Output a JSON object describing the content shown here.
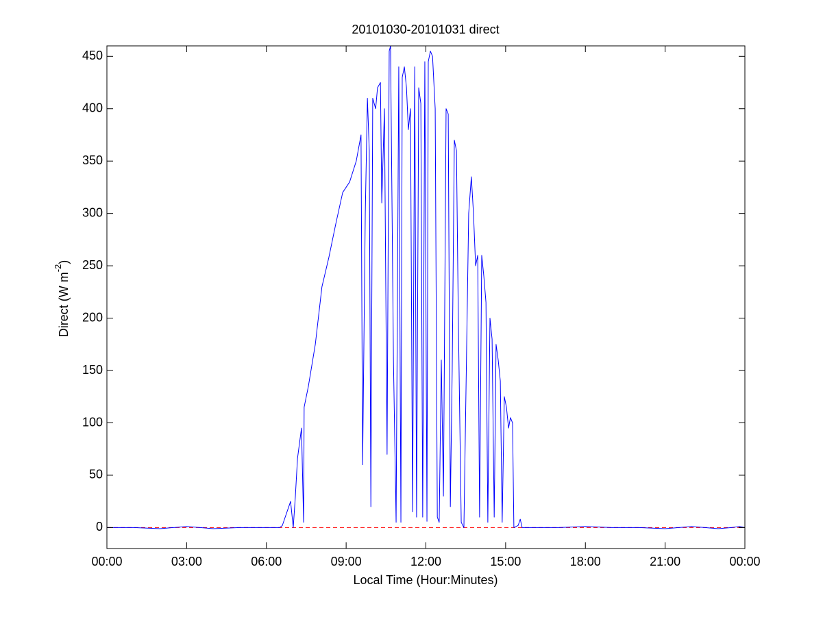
{
  "chart_data": {
    "type": "line",
    "title": "20101030-20101031 direct",
    "x_label": "Local Time (Hour:Minutes)",
    "y_label": {
      "text": "Direct (W m",
      "sup": "-2",
      "end": ")"
    },
    "xlim": [
      0,
      24
    ],
    "xticks": [
      {
        "value": 0,
        "label": "00:00"
      },
      {
        "value": 3,
        "label": "03:00"
      },
      {
        "value": 6,
        "label": "06:00"
      },
      {
        "value": 9,
        "label": "09:00"
      },
      {
        "value": 12,
        "label": "12:00"
      },
      {
        "value": 15,
        "label": "15:00"
      },
      {
        "value": 18,
        "label": "18:00"
      },
      {
        "value": 21,
        "label": "21:00"
      },
      {
        "value": 24,
        "label": "00:00"
      }
    ],
    "ylim": [
      -20,
      460
    ],
    "yticks": [
      0,
      50,
      100,
      150,
      200,
      250,
      300,
      350,
      400,
      450
    ],
    "grid": false,
    "x": [
      0,
      1,
      2,
      2.5,
      3,
      3.5,
      4,
      5,
      6,
      6.5,
      6.6,
      6.91,
      7.01,
      7.09,
      7.17,
      7.32,
      7.4,
      7.42,
      7.58,
      7.84,
      8.09,
      8.35,
      8.61,
      8.87,
      9.13,
      9.38,
      9.56,
      9.62,
      9.72,
      9.8,
      9.87,
      9.93,
      10,
      10.11,
      10.18,
      10.29,
      10.34,
      10.44,
      10.54,
      10.62,
      10.67,
      10.78,
      10.88,
      10.98,
      11.06,
      11.11,
      11.19,
      11.27,
      11.34,
      11.42,
      11.5,
      11.58,
      11.65,
      11.73,
      11.81,
      11.88,
      11.96,
      12.04,
      12.09,
      12.17,
      12.25,
      12.35,
      12.43,
      12.5,
      12.58,
      12.66,
      12.76,
      12.84,
      12.92,
      12.99,
      13.07,
      13.15,
      13.22,
      13.33,
      13.43,
      13.61,
      13.71,
      13.79,
      13.87,
      13.95,
      14.02,
      14.1,
      14.18,
      14.26,
      14.33,
      14.41,
      14.49,
      14.57,
      14.64,
      14.72,
      14.8,
      14.87,
      14.95,
      15.03,
      15.11,
      15.18,
      15.26,
      15.31,
      15.47,
      15.55,
      15.62,
      15.88,
      17,
      18,
      19,
      20,
      21,
      22,
      23,
      23.5,
      23.8,
      24
    ],
    "series": [
      {
        "color": "#0000ff",
        "values": [
          0,
          0,
          -1,
          0,
          1,
          0,
          -1,
          0,
          0,
          0,
          2,
          25,
          0,
          30,
          66,
          95,
          5,
          115,
          135,
          175,
          230,
          258,
          290,
          320,
          330,
          350,
          375,
          60,
          300,
          410,
          360,
          20,
          410,
          400,
          420,
          425,
          310,
          400,
          70,
          455,
          460,
          160,
          5,
          440,
          5,
          430,
          440,
          420,
          380,
          400,
          15,
          440,
          10,
          420,
          405,
          10,
          445,
          6,
          445,
          455,
          450,
          400,
          10,
          5,
          160,
          30,
          400,
          395,
          20,
          150,
          370,
          360,
          200,
          5,
          0,
          300,
          335,
          300,
          250,
          260,
          10,
          260,
          240,
          215,
          5,
          200,
          180,
          10,
          175,
          160,
          140,
          5,
          125,
          115,
          95,
          105,
          100,
          0,
          2,
          8,
          0,
          0,
          0,
          1,
          0,
          0,
          -1,
          1,
          -1,
          0,
          1,
          0
        ]
      }
    ],
    "reference_line": {
      "value": 0,
      "color": "#ff0000",
      "style": "dashed"
    }
  }
}
